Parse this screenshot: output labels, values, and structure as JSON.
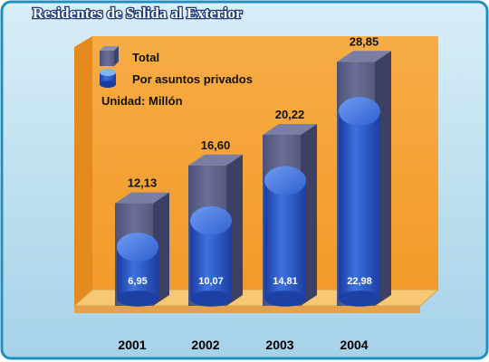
{
  "chart_data": {
    "type": "bar",
    "title": "Residentes de Salida al Exterior",
    "unit_note": "Unidad: Millón",
    "categories": [
      "2001",
      "2002",
      "2003",
      "2004"
    ],
    "series": [
      {
        "name": "Total",
        "values": [
          12.13,
          16.6,
          20.22,
          28.85
        ],
        "labels": [
          "12,13",
          "16,60",
          "20,22",
          "28,85"
        ],
        "color": "#5a5e86"
      },
      {
        "name": "Por asuntos privados",
        "values": [
          6.95,
          10.07,
          14.81,
          22.98
        ],
        "labels": [
          "6,95",
          "10,07",
          "14,81",
          "22,98"
        ],
        "color": "#2a56c8"
      }
    ],
    "ylim": [
      0,
      32
    ],
    "legend_position": "top-left",
    "background_color": "#f5a53b",
    "floor_color": "#f7c874",
    "grid": false
  }
}
